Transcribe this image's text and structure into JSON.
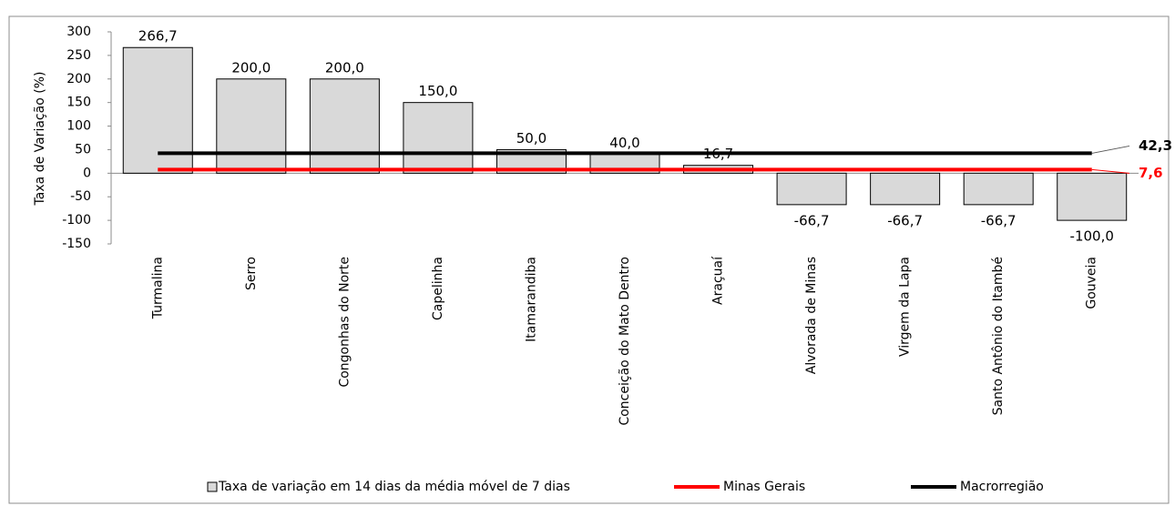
{
  "chart_data": {
    "type": "bar",
    "y_label": "Taxa de Variação (%)",
    "categories": [
      "Turmalina",
      "Serro",
      "Congonhas do Norte",
      "Capelinha",
      "Itamarandiba",
      "Conceição do Mato Dentro",
      "Araçuaí",
      "Alvorada de Minas",
      "Virgem da Lapa",
      "Santo Antônio do Itambé",
      "Gouveia"
    ],
    "series": [
      {
        "name": "Taxa de variação em 14 dias da média móvel de 7 dias",
        "type": "bar",
        "color": "#d9d9d9",
        "values": [
          266.7,
          200,
          200,
          150,
          50,
          40,
          16.7,
          -66.7,
          -66.7,
          -66.7,
          -100
        ],
        "value_labels": [
          "266,7",
          "200,0",
          "200,0",
          "150,0",
          "50,0",
          "40,0",
          "16,7",
          "-66,7",
          "-66,7",
          "-66,7",
          "-100,0"
        ]
      },
      {
        "name": "Minas Gerais",
        "type": "line",
        "color": "#ff0000",
        "values": [
          7.6,
          7.6,
          7.6,
          7.6,
          7.6,
          7.6,
          7.6,
          7.6,
          7.6,
          7.6,
          7.6
        ],
        "end_label": "7,6"
      },
      {
        "name": "Macrorregião",
        "type": "line",
        "color": "#000000",
        "values": [
          42.3,
          42.3,
          42.3,
          42.3,
          42.3,
          42.3,
          42.3,
          42.3,
          42.3,
          42.3,
          42.3
        ],
        "end_label": "42,3"
      }
    ],
    "ylim": [
      -150,
      300
    ],
    "yticks": [
      -150,
      -100,
      -50,
      0,
      50,
      100,
      150,
      200,
      250,
      300
    ],
    "grid": false
  }
}
